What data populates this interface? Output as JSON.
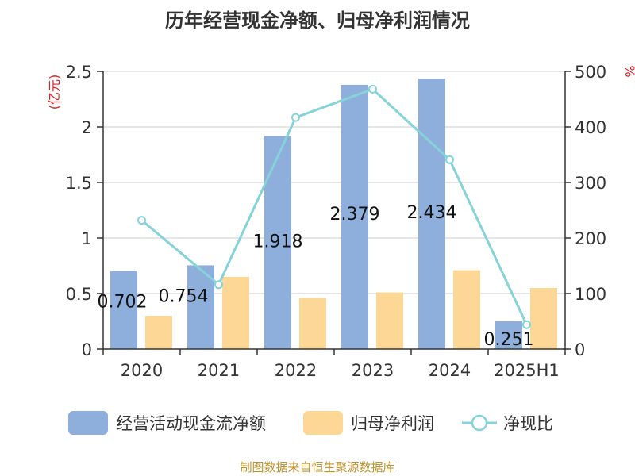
{
  "chart_data": {
    "type": "bar+line",
    "title": "历年经营现金净额、归母净利润情况",
    "categories": [
      "2020",
      "2021",
      "2022",
      "2023",
      "2024",
      "2025H1"
    ],
    "series": [
      {
        "name": "经营活动现金流净额",
        "type": "bar",
        "axis": "left",
        "color": "#8eaedb",
        "values": [
          0.702,
          0.754,
          1.918,
          2.379,
          2.434,
          0.251
        ],
        "labels": [
          "0.702",
          "0.754",
          "1.918",
          "2.379",
          "2.434",
          "0.251"
        ]
      },
      {
        "name": "归母净利润",
        "type": "bar",
        "axis": "left",
        "color": "#fdd795",
        "values": [
          0.3,
          0.65,
          0.46,
          0.51,
          0.71,
          0.55
        ]
      },
      {
        "name": "净现比",
        "type": "line",
        "axis": "right",
        "color": "#85d3d8",
        "values": [
          232,
          116,
          417,
          468,
          341,
          44
        ]
      }
    ],
    "y_left": {
      "label": "(亿元)",
      "min": 0,
      "max": 2.5,
      "ticks": [
        0,
        0.5,
        1,
        1.5,
        2,
        2.5
      ],
      "tick_labels": [
        "0",
        "0.5",
        "1",
        "1.5",
        "2",
        "2.5"
      ]
    },
    "y_right": {
      "label": "%",
      "min": 0,
      "max": 500,
      "ticks": [
        0,
        100,
        200,
        300,
        400,
        500
      ],
      "tick_labels": [
        "0",
        "100",
        "200",
        "300",
        "400",
        "500"
      ]
    },
    "grid": true,
    "legend_position": "bottom"
  },
  "source": "制图数据来自恒生聚源数据库",
  "colors": {
    "axis_label_red": "#e02020",
    "grid": "#cccccc",
    "axis": "#333333"
  }
}
